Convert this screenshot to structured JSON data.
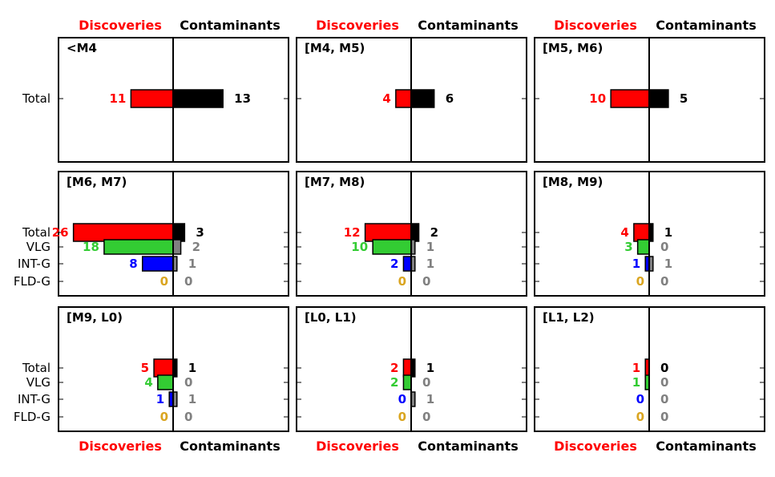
{
  "figure": {
    "top_headers": {
      "left": "Discoveries",
      "right": "Contaminants"
    },
    "bottom_headers": {
      "left": "Discoveries",
      "right": "Contaminants"
    }
  },
  "colors": {
    "Total": "#ff0000",
    "VLG": "#33cc33",
    "INT-G": "#0000ff",
    "FLD-G": "#daa520",
    "contaminant_total": "#000000",
    "contaminant_sub": "#808080",
    "discoveries_header": "#ff0000",
    "contaminants_header": "#000000"
  },
  "chart_data": [
    {
      "type": "bar",
      "title": "<M4",
      "categories": [
        "Total"
      ],
      "xlim": [
        -30,
        30
      ],
      "series": [
        {
          "name": "Discoveries",
          "values": [
            11
          ]
        },
        {
          "name": "Contaminants",
          "values": [
            13
          ]
        }
      ]
    },
    {
      "type": "bar",
      "title": "[M4, M5)",
      "categories": [
        "Total"
      ],
      "xlim": [
        -30,
        30
      ],
      "series": [
        {
          "name": "Discoveries",
          "values": [
            4
          ]
        },
        {
          "name": "Contaminants",
          "values": [
            6
          ]
        }
      ]
    },
    {
      "type": "bar",
      "title": "[M5, M6)",
      "categories": [
        "Total"
      ],
      "xlim": [
        -30,
        30
      ],
      "series": [
        {
          "name": "Discoveries",
          "values": [
            10
          ]
        },
        {
          "name": "Contaminants",
          "values": [
            5
          ]
        }
      ]
    },
    {
      "type": "bar",
      "title": "[M6, M7)",
      "categories": [
        "Total",
        "VLG",
        "INT-G",
        "FLD-G"
      ],
      "xlim": [
        -30,
        30
      ],
      "series": [
        {
          "name": "Discoveries",
          "values": [
            26,
            18,
            8,
            0
          ]
        },
        {
          "name": "Contaminants",
          "values": [
            3,
            2,
            1,
            0
          ]
        }
      ]
    },
    {
      "type": "bar",
      "title": "[M7, M8)",
      "categories": [
        "Total",
        "VLG",
        "INT-G",
        "FLD-G"
      ],
      "xlim": [
        -30,
        30
      ],
      "series": [
        {
          "name": "Discoveries",
          "values": [
            12,
            10,
            2,
            0
          ]
        },
        {
          "name": "Contaminants",
          "values": [
            2,
            1,
            1,
            0
          ]
        }
      ]
    },
    {
      "type": "bar",
      "title": "[M8, M9)",
      "categories": [
        "Total",
        "VLG",
        "INT-G",
        "FLD-G"
      ],
      "xlim": [
        -30,
        30
      ],
      "series": [
        {
          "name": "Discoveries",
          "values": [
            4,
            3,
            1,
            0
          ]
        },
        {
          "name": "Contaminants",
          "values": [
            1,
            0,
            1,
            0
          ]
        }
      ]
    },
    {
      "type": "bar",
      "title": "[M9, L0)",
      "categories": [
        "Total",
        "VLG",
        "INT-G",
        "FLD-G"
      ],
      "xlim": [
        -30,
        30
      ],
      "series": [
        {
          "name": "Discoveries",
          "values": [
            5,
            4,
            1,
            0
          ]
        },
        {
          "name": "Contaminants",
          "values": [
            1,
            0,
            1,
            0
          ]
        }
      ]
    },
    {
      "type": "bar",
      "title": "[L0, L1)",
      "categories": [
        "Total",
        "VLG",
        "INT-G",
        "FLD-G"
      ],
      "xlim": [
        -30,
        30
      ],
      "series": [
        {
          "name": "Discoveries",
          "values": [
            2,
            2,
            0,
            0
          ]
        },
        {
          "name": "Contaminants",
          "values": [
            1,
            0,
            1,
            0
          ]
        }
      ]
    },
    {
      "type": "bar",
      "title": "[L1, L2)",
      "categories": [
        "Total",
        "VLG",
        "INT-G",
        "FLD-G"
      ],
      "xlim": [
        -30,
        30
      ],
      "series": [
        {
          "name": "Discoveries",
          "values": [
            1,
            1,
            0,
            0
          ]
        },
        {
          "name": "Contaminants",
          "values": [
            0,
            0,
            0,
            0
          ]
        }
      ]
    }
  ]
}
